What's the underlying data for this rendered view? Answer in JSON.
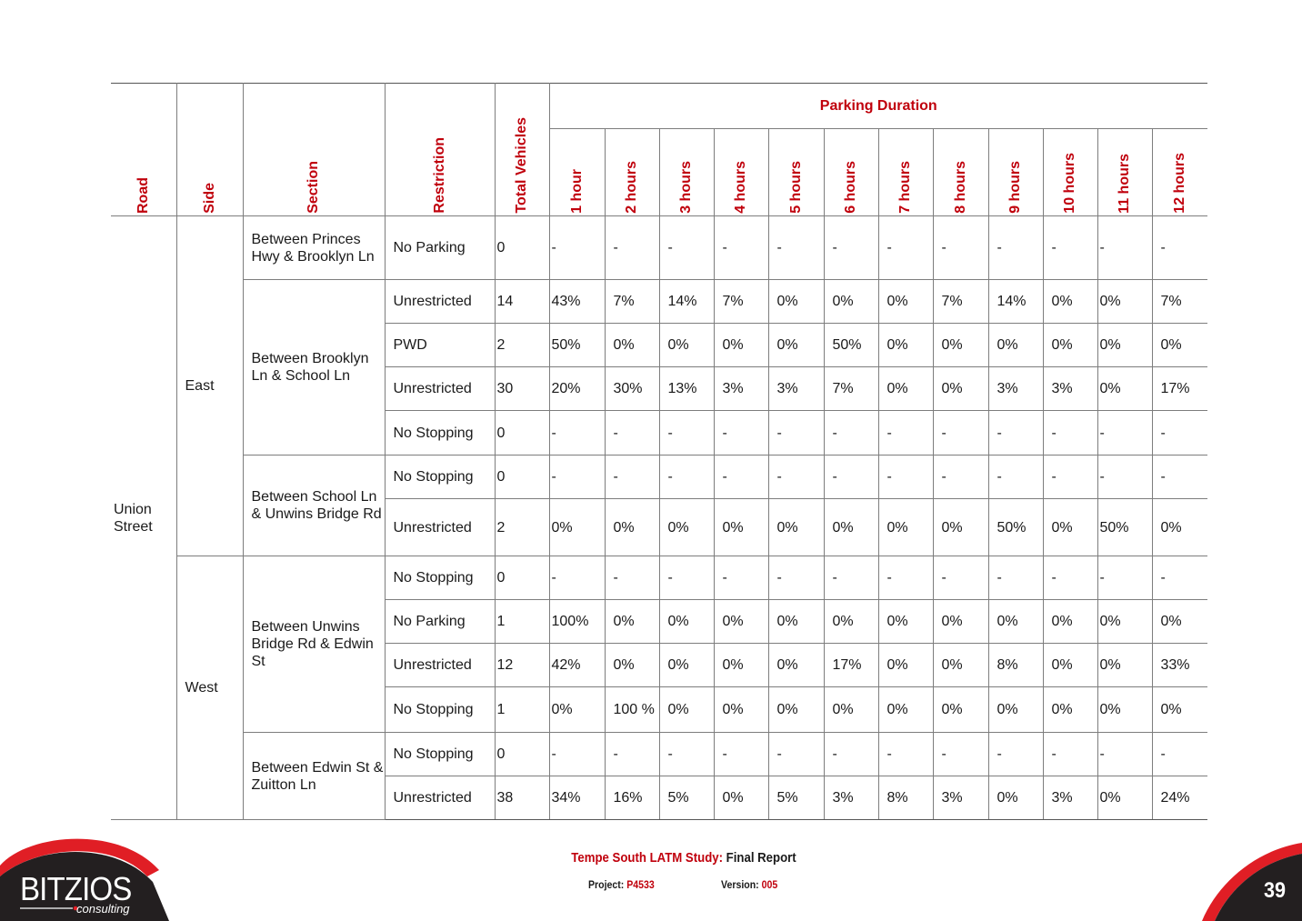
{
  "table": {
    "headers": {
      "road": "Road",
      "side": "Side",
      "section": "Section",
      "restriction": "Restriction",
      "total": "Total Vehicles",
      "group": "Parking Duration",
      "hours": [
        "1 hour",
        "2 hours",
        "3 hours",
        "4 hours",
        "5 hours",
        "6 hours",
        "7 hours",
        "8 hours",
        "9 hours",
        "10 hours",
        "11 hours",
        "12 hours"
      ]
    },
    "road": "Union Street",
    "sides": [
      "East",
      "West"
    ],
    "sections": [
      "Between Princes Hwy & Brooklyn Ln",
      "Between Brooklyn Ln & School Ln",
      "Between School Ln & Unwins Bridge Rd",
      "Between Unwins Bridge Rd & Edwin St",
      "Between Edwin St & Zuitton Ln"
    ],
    "rows": [
      {
        "restriction": "No Parking",
        "total": "0",
        "d": [
          "-",
          "-",
          "-",
          "-",
          "-",
          "-",
          "-",
          "-",
          "-",
          "-",
          "-",
          "-"
        ]
      },
      {
        "restriction": "Unrestricted",
        "total": "14",
        "d": [
          "43%",
          "7%",
          "14%",
          "7%",
          "0%",
          "0%",
          "0%",
          "7%",
          "14%",
          "0%",
          "0%",
          "7%"
        ]
      },
      {
        "restriction": "PWD",
        "total": "2",
        "d": [
          "50%",
          "0%",
          "0%",
          "0%",
          "0%",
          "50%",
          "0%",
          "0%",
          "0%",
          "0%",
          "0%",
          "0%"
        ]
      },
      {
        "restriction": "Unrestricted",
        "total": "30",
        "d": [
          "20%",
          "30%",
          "13%",
          "3%",
          "3%",
          "7%",
          "0%",
          "0%",
          "3%",
          "3%",
          "0%",
          "17%"
        ]
      },
      {
        "restriction": "No Stopping",
        "total": "0",
        "d": [
          "-",
          "-",
          "-",
          "-",
          "-",
          "-",
          "-",
          "-",
          "-",
          "-",
          "-",
          "-"
        ]
      },
      {
        "restriction": "No Stopping",
        "total": "0",
        "d": [
          "-",
          "-",
          "-",
          "-",
          "-",
          "-",
          "-",
          "-",
          "-",
          "-",
          "-",
          "-"
        ]
      },
      {
        "restriction": "Unrestricted",
        "total": "2",
        "d": [
          "0%",
          "0%",
          "0%",
          "0%",
          "0%",
          "0%",
          "0%",
          "0%",
          "50%",
          "0%",
          "50%",
          "0%"
        ]
      },
      {
        "restriction": "No Stopping",
        "total": "0",
        "d": [
          "-",
          "-",
          "-",
          "-",
          "-",
          "-",
          "-",
          "-",
          "-",
          "-",
          "-",
          "-"
        ]
      },
      {
        "restriction": "No Parking",
        "total": "1",
        "d": [
          "100%",
          "0%",
          "0%",
          "0%",
          "0%",
          "0%",
          "0%",
          "0%",
          "0%",
          "0%",
          "0%",
          "0%"
        ]
      },
      {
        "restriction": "Unrestricted",
        "total": "12",
        "d": [
          "42%",
          "0%",
          "0%",
          "0%",
          "0%",
          "17%",
          "0%",
          "0%",
          "8%",
          "0%",
          "0%",
          "33%"
        ]
      },
      {
        "restriction": "No Stopping",
        "total": "1",
        "d": [
          "0%",
          "100 %",
          "0%",
          "0%",
          "0%",
          "0%",
          "0%",
          "0%",
          "0%",
          "0%",
          "0%",
          "0%"
        ]
      },
      {
        "restriction": "No Stopping",
        "total": "0",
        "d": [
          "-",
          "-",
          "-",
          "-",
          "-",
          "-",
          "-",
          "-",
          "-",
          "-",
          "-",
          "-"
        ]
      },
      {
        "restriction": "Unrestricted",
        "total": "38",
        "d": [
          "34%",
          "16%",
          "5%",
          "0%",
          "5%",
          "3%",
          "8%",
          "3%",
          "0%",
          "3%",
          "0%",
          "24%"
        ]
      }
    ]
  },
  "footer": {
    "study": "Tempe South LATM Study:",
    "report": "Final Report",
    "project_label": "Project:",
    "project_value": "P4533",
    "version_label": "Version:",
    "version_value": "005",
    "page_number": "39"
  },
  "logo": {
    "name": "BITZIOS",
    "sub": "consulting",
    "colors": {
      "red": "#e01e25",
      "dark": "#231f20"
    }
  }
}
